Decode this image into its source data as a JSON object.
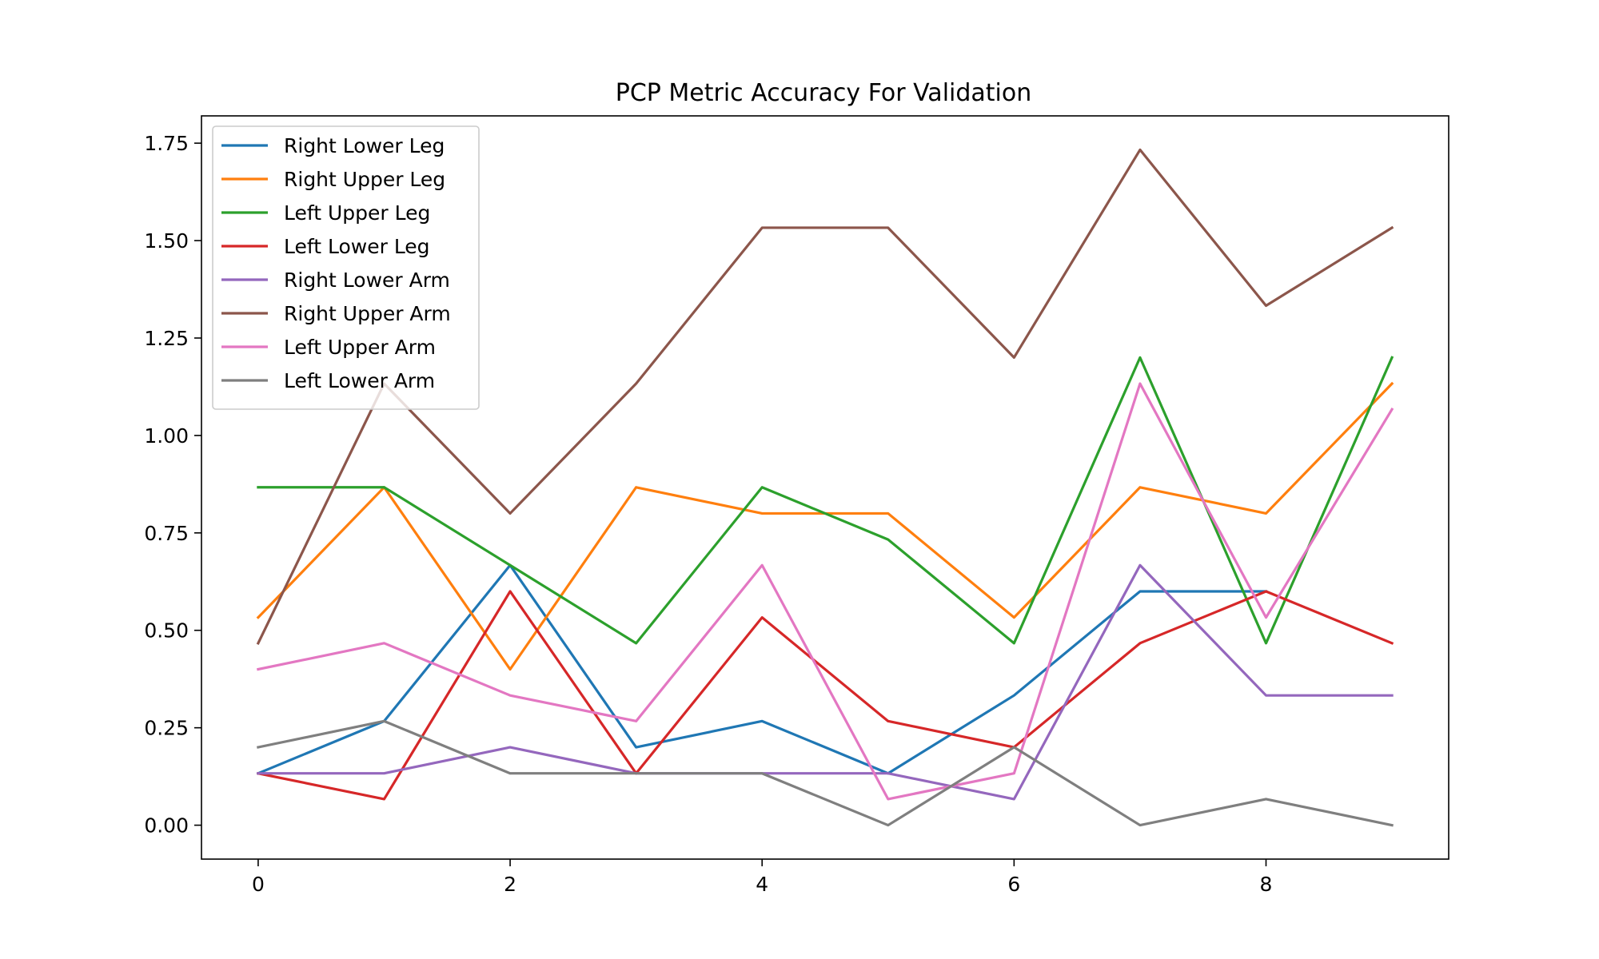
{
  "chart_data": {
    "type": "line",
    "title": "PCP Metric Accuracy For Validation",
    "xlabel": "",
    "ylabel": "",
    "x": [
      0,
      1,
      2,
      3,
      4,
      5,
      6,
      7,
      8,
      9
    ],
    "xlim": [
      -0.45,
      9.45
    ],
    "ylim": [
      -0.087,
      1.82
    ],
    "xticks": [
      0,
      2,
      4,
      6,
      8
    ],
    "xtick_labels": [
      "0",
      "2",
      "4",
      "6",
      "8"
    ],
    "yticks": [
      0.0,
      0.25,
      0.5,
      0.75,
      1.0,
      1.25,
      1.5,
      1.75
    ],
    "ytick_labels": [
      "0.00",
      "0.25",
      "0.50",
      "0.75",
      "1.00",
      "1.25",
      "1.50",
      "1.75"
    ],
    "grid": false,
    "legend_position": "upper-left",
    "series": [
      {
        "name": "Right Lower Leg",
        "color": "#1f77b4",
        "values": [
          0.133,
          0.267,
          0.667,
          0.2,
          0.267,
          0.133,
          0.333,
          0.6,
          0.6,
          null
        ]
      },
      {
        "name": "Right Upper Leg",
        "color": "#ff7f0e",
        "values": [
          0.533,
          0.867,
          0.4,
          0.867,
          0.8,
          0.8,
          0.533,
          0.867,
          0.8,
          1.133
        ]
      },
      {
        "name": "Left Upper Leg",
        "color": "#2ca02c",
        "values": [
          0.867,
          0.867,
          0.667,
          0.467,
          0.867,
          0.733,
          0.467,
          1.2,
          0.467,
          1.2
        ]
      },
      {
        "name": "Left Lower Leg",
        "color": "#d62728",
        "values": [
          0.133,
          0.067,
          0.6,
          0.133,
          0.533,
          0.267,
          0.2,
          0.467,
          0.6,
          0.467
        ]
      },
      {
        "name": "Right Lower Arm",
        "color": "#9467bd",
        "values": [
          0.133,
          0.133,
          0.2,
          0.133,
          0.133,
          0.133,
          0.067,
          0.667,
          0.333,
          0.333
        ]
      },
      {
        "name": "Right Upper Arm",
        "color": "#8c564b",
        "values": [
          0.467,
          1.133,
          0.8,
          1.133,
          1.533,
          1.533,
          1.2,
          1.733,
          1.333,
          1.533
        ]
      },
      {
        "name": "Left Upper Arm",
        "color": "#e377c2",
        "values": [
          0.4,
          0.467,
          0.333,
          0.267,
          0.667,
          0.067,
          0.133,
          1.133,
          0.533,
          1.067
        ]
      },
      {
        "name": "Left Lower Arm",
        "color": "#7f7f7f",
        "values": [
          0.2,
          0.267,
          0.133,
          0.133,
          0.133,
          0.0,
          0.2,
          0.0,
          0.067,
          0.0
        ]
      }
    ]
  }
}
